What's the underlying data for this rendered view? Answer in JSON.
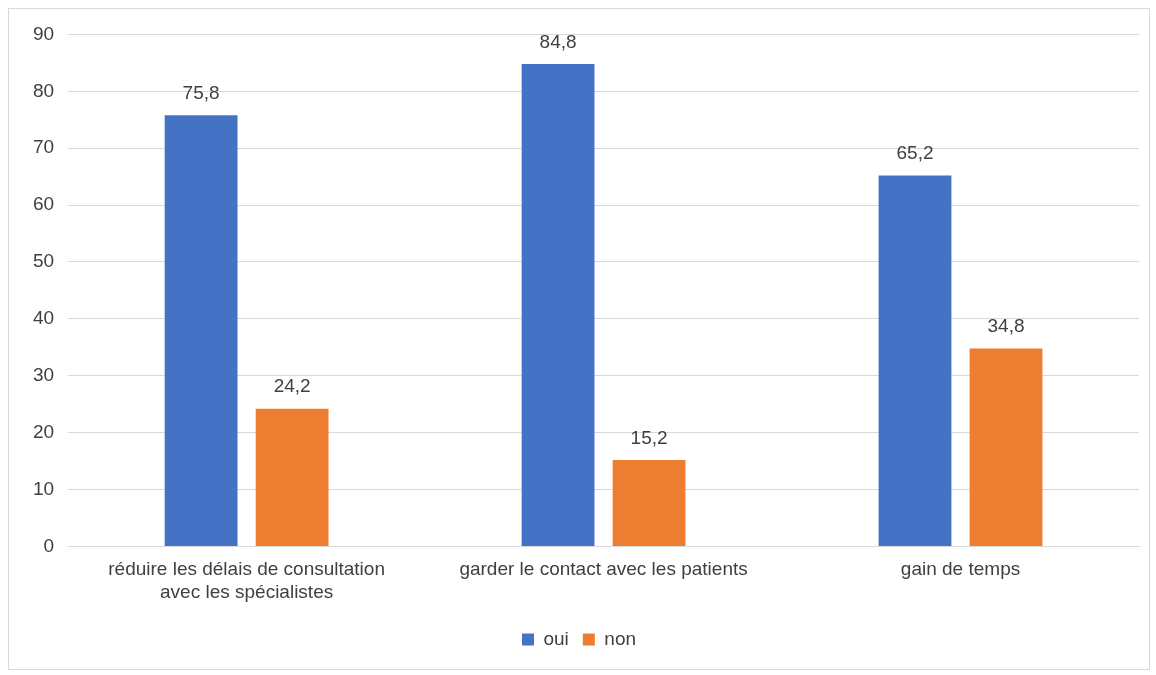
{
  "chart_data": {
    "type": "bar",
    "categories": [
      "réduire les délais de consultation avec les spécialistes",
      "garder le contact avec les patients",
      "gain de temps"
    ],
    "series": [
      {
        "name": "oui",
        "color": "#4472c4",
        "values": [
          75.8,
          84.8,
          65.2
        ],
        "value_labels": [
          "75,8",
          "84,8",
          "65,2"
        ]
      },
      {
        "name": "non",
        "color": "#ed7d31",
        "values": [
          24.2,
          15.2,
          34.8
        ],
        "value_labels": [
          "24,2",
          "15,2",
          "34,8"
        ]
      }
    ],
    "ylim": [
      0,
      90
    ],
    "yticks": [
      0,
      10,
      20,
      30,
      40,
      50,
      60,
      70,
      80,
      90
    ],
    "grid": "y",
    "legend": "bottom"
  }
}
